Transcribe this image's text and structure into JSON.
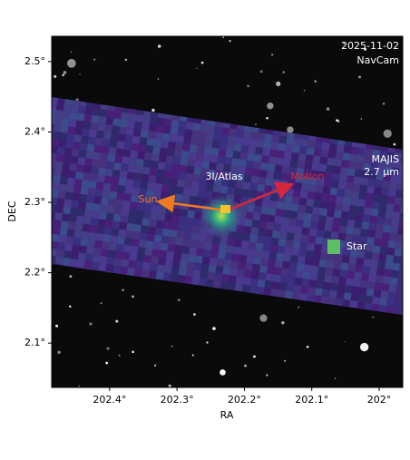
{
  "chart_data": {
    "type": "image",
    "xlabel": "RA",
    "ylabel": "DEC",
    "xlim": [
      202.486,
      201.965
    ],
    "ylim": [
      2.037,
      2.536
    ],
    "xticks": [
      {
        "value": 202.4,
        "label": "202.4°"
      },
      {
        "value": 202.3,
        "label": "202.3°"
      },
      {
        "value": 202.2,
        "label": "202.2°"
      },
      {
        "value": 202.1,
        "label": "202.1°"
      },
      {
        "value": 202,
        "label": "202°"
      }
    ],
    "yticks": [
      {
        "value": 2.1,
        "label": "2.1°"
      },
      {
        "value": 2.2,
        "label": "2.2°"
      },
      {
        "value": 2.3,
        "label": "2.3°"
      },
      {
        "value": 2.4,
        "label": "2.4°"
      },
      {
        "value": 2.5,
        "label": "2.5°"
      }
    ],
    "annotations": {
      "date": "2025-11-02",
      "camera": "NavCam",
      "instrument": "MAJIS",
      "wavelength": "2.7 µm",
      "target": "3I/Atlas",
      "sun": "Sun",
      "motion": "Motion",
      "star": "Star"
    }
  }
}
